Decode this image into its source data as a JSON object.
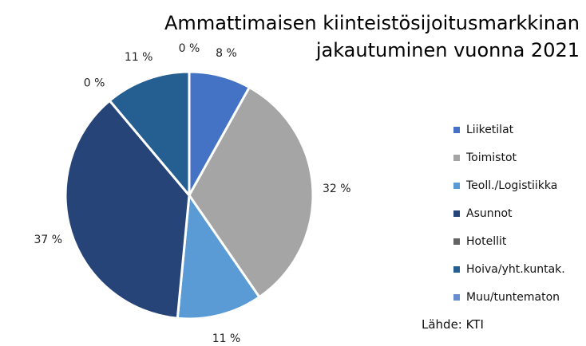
{
  "chart_data": {
    "type": "pie",
    "title": [
      "Ammattimaisen kiinteistösijoitusmarkkinan",
      "jakautuminen vuonna 2021"
    ],
    "slices": [
      {
        "name": "Liiketilat",
        "value": 8,
        "label": "8 %",
        "color": "#4472c4"
      },
      {
        "name": "Toimistot",
        "value": 32,
        "label": "32 %",
        "color": "#a5a5a5"
      },
      {
        "name": "Teoll./Logistiikka",
        "value": 11,
        "label": "11 %",
        "color": "#5b9bd5"
      },
      {
        "name": "Asunnot",
        "value": 37,
        "label": "37 %",
        "color": "#264478"
      },
      {
        "name": "Hotellit",
        "value": 0,
        "label": "0 %",
        "color": "#636363"
      },
      {
        "name": "Hoiva/yht.kuntak.",
        "value": 11,
        "label": "11 %",
        "color": "#255e91"
      },
      {
        "name": "Muu/tuntematon",
        "value": 0,
        "label": "0 %",
        "color": "#698ed0"
      }
    ],
    "legend_position": "right",
    "source": "Lähde: KTI"
  }
}
